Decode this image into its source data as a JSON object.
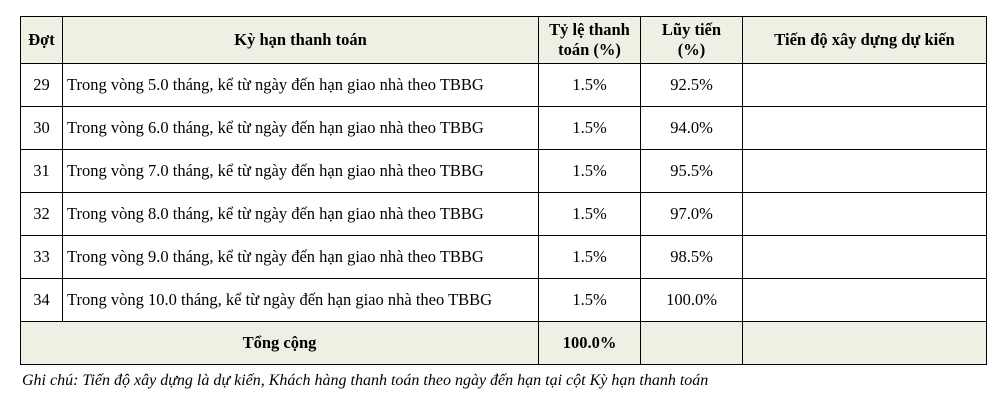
{
  "table": {
    "headers": {
      "installment": "Đợt",
      "payment_term": "Kỳ hạn thanh toán",
      "payment_rate_line1": "Tỷ lệ thanh",
      "payment_rate_line2": "toán (%)",
      "cumulative_line1": "Lũy tiến",
      "cumulative_line2": "(%)",
      "progress": "Tiến độ xây dựng dự kiến"
    },
    "rows": [
      {
        "installment": "29",
        "term": "Trong vòng 5.0 tháng,  kể từ ngày đến hạn giao nhà theo TBBG",
        "rate": "1.5%",
        "cumulative": "92.5%",
        "progress": ""
      },
      {
        "installment": "30",
        "term": "Trong vòng 6.0 tháng,  kể từ ngày đến hạn giao nhà theo TBBG",
        "rate": "1.5%",
        "cumulative": "94.0%",
        "progress": ""
      },
      {
        "installment": "31",
        "term": "Trong vòng 7.0 tháng,  kể từ ngày đến hạn giao nhà theo TBBG",
        "rate": "1.5%",
        "cumulative": "95.5%",
        "progress": ""
      },
      {
        "installment": "32",
        "term": "Trong vòng 8.0 tháng,  kể từ ngày đến hạn giao nhà theo TBBG",
        "rate": "1.5%",
        "cumulative": "97.0%",
        "progress": ""
      },
      {
        "installment": "33",
        "term": "Trong vòng 9.0 tháng,  kể từ ngày đến hạn giao nhà theo TBBG",
        "rate": "1.5%",
        "cumulative": "98.5%",
        "progress": ""
      },
      {
        "installment": "34",
        "term": "Trong vòng 10.0 tháng,  kể từ ngày đến hạn giao nhà theo TBBG",
        "rate": "1.5%",
        "cumulative": "100.0%",
        "progress": ""
      }
    ],
    "total": {
      "label": "Tổng cộng",
      "value": "100.0%"
    }
  },
  "note": "Ghi chú: Tiến độ xây dựng là dự kiến, Khách hàng thanh toán theo ngày đến hạn tại cột Kỳ hạn thanh toán"
}
